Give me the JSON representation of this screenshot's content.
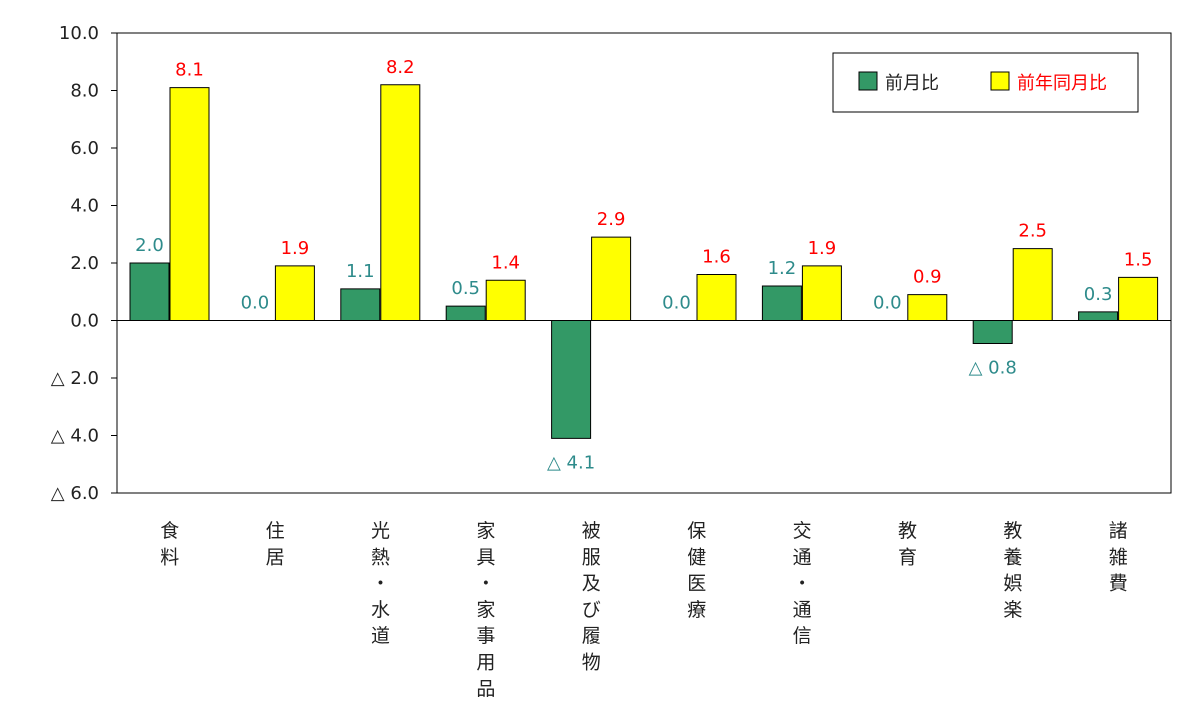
{
  "chart_data": {
    "type": "bar",
    "categories": [
      "食料",
      "住居",
      "光熱・水道",
      "家具・家事用品",
      "被服及び履物",
      "保健医療",
      "交通・通信",
      "教育",
      "教養娯楽",
      "諸雑費"
    ],
    "series": [
      {
        "name": "前月比",
        "values": [
          2.0,
          0.0,
          1.1,
          0.5,
          -4.1,
          0.0,
          1.2,
          0.0,
          -0.8,
          0.3
        ],
        "labels": [
          "2.0",
          "0.0",
          "1.1",
          "0.5",
          "△ 4.1",
          "0.0",
          "1.2",
          "0.0",
          "△ 0.8",
          "0.3"
        ],
        "color": "#339966",
        "label_color": "#2e8b8b"
      },
      {
        "name": "前年同月比",
        "values": [
          8.1,
          1.9,
          8.2,
          1.4,
          2.9,
          1.6,
          1.9,
          0.9,
          2.5,
          1.5
        ],
        "labels": [
          "8.1",
          "1.9",
          "8.2",
          "1.4",
          "2.9",
          "1.6",
          "1.9",
          "0.9",
          "2.5",
          "1.5"
        ],
        "color": "#ffff00",
        "label_color": "#ff0000"
      }
    ],
    "y_ticks": [
      10,
      8,
      6,
      4,
      2,
      0,
      -2,
      -4,
      -6
    ],
    "y_tick_labels": [
      "10.0",
      "8.0",
      "6.0",
      "4.0",
      "2.0",
      "0.0",
      "△ 2.0",
      "△ 4.0",
      "△ 6.0"
    ],
    "ylim": [
      -6,
      10
    ],
    "legend_position": "top-right",
    "grid": false
  }
}
